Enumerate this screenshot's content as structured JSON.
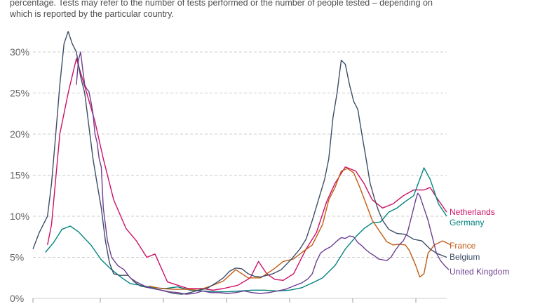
{
  "note": {
    "line1": "percentage. Tests may refer to the number of tests performed or the number of people tested – depending on",
    "line2": "which is reported by the particular country."
  },
  "chart_data": {
    "type": "line",
    "title": "",
    "xlabel": "",
    "ylabel": "",
    "ylim": [
      0,
      30
    ],
    "xlim": [
      0,
      100
    ],
    "y_ticks": [
      "0%",
      "5%",
      "10%",
      "15%",
      "20%",
      "25%",
      "30%"
    ],
    "y_tick_values": [
      0,
      5,
      10,
      15,
      20,
      25,
      30
    ],
    "grid": true,
    "series": [
      {
        "name": "Netherlands",
        "color": "#cc1166",
        "points": [
          [
            3.5,
            6.5
          ],
          [
            4.5,
            9
          ],
          [
            6.5,
            20
          ],
          [
            8.5,
            25
          ],
          [
            10.5,
            29.2
          ],
          [
            13,
            25
          ],
          [
            15,
            21.5
          ],
          [
            17,
            17
          ],
          [
            19.5,
            12
          ],
          [
            22.5,
            8.5
          ],
          [
            25,
            7
          ],
          [
            27.5,
            5
          ],
          [
            29.5,
            5.4
          ],
          [
            32.5,
            2
          ],
          [
            35,
            1.6
          ],
          [
            37.5,
            1.2
          ],
          [
            41,
            1.2
          ],
          [
            43.5,
            1
          ],
          [
            46,
            1.2
          ],
          [
            49.5,
            1.6
          ],
          [
            52.5,
            2.5
          ],
          [
            54.5,
            4.5
          ],
          [
            56.5,
            3
          ],
          [
            58.5,
            2.3
          ],
          [
            60.5,
            2.2
          ],
          [
            63,
            3
          ],
          [
            66,
            6
          ],
          [
            68.5,
            8
          ],
          [
            71,
            11.8
          ],
          [
            73,
            14
          ],
          [
            75.5,
            16
          ],
          [
            78,
            15.5
          ],
          [
            80,
            14
          ],
          [
            82,
            12
          ],
          [
            84.5,
            11
          ],
          [
            87,
            11.5
          ],
          [
            89.5,
            12.5
          ],
          [
            92,
            13.2
          ],
          [
            94.5,
            13.2
          ],
          [
            96,
            13.5
          ],
          [
            97.5,
            12.3
          ],
          [
            100,
            10.5
          ]
        ]
      },
      {
        "name": "Germany",
        "color": "#00847e",
        "points": [
          [
            3,
            5.6
          ],
          [
            5,
            6.8
          ],
          [
            7,
            8.4
          ],
          [
            9,
            8.8
          ],
          [
            11,
            8.1
          ],
          [
            14,
            6.5
          ],
          [
            16.5,
            4.7
          ],
          [
            19,
            3.5
          ],
          [
            21.5,
            2.5
          ],
          [
            23.5,
            1.8
          ],
          [
            26,
            1.6
          ],
          [
            29,
            1.3
          ],
          [
            32,
            1.2
          ],
          [
            35,
            1.4
          ],
          [
            38,
            1
          ],
          [
            41,
            0.9
          ],
          [
            44,
            0.8
          ],
          [
            47,
            0.8
          ],
          [
            50,
            0.9
          ],
          [
            53,
            1
          ],
          [
            56,
            1
          ],
          [
            59,
            0.9
          ],
          [
            62,
            1
          ],
          [
            65,
            1.3
          ],
          [
            68,
            2
          ],
          [
            70,
            2.5
          ],
          [
            73,
            4
          ],
          [
            75.5,
            6
          ],
          [
            78,
            7.5
          ],
          [
            80,
            8.5
          ],
          [
            82,
            9.2
          ],
          [
            84,
            9.3
          ],
          [
            86,
            10.5
          ],
          [
            88,
            11
          ],
          [
            90,
            11.8
          ],
          [
            92,
            12.5
          ],
          [
            93.5,
            14.5
          ],
          [
            94.5,
            15.9
          ],
          [
            96,
            14.5
          ],
          [
            98,
            11.5
          ],
          [
            100,
            10
          ]
        ]
      },
      {
        "name": "France",
        "color": "#c15b13",
        "points": [
          [
            28,
            1.5
          ],
          [
            31,
            1.2
          ],
          [
            34,
            1.1
          ],
          [
            37,
            1.1
          ],
          [
            40,
            1
          ],
          [
            43,
            1.5
          ],
          [
            46,
            2.1
          ],
          [
            49,
            3.5
          ],
          [
            52,
            2.5
          ],
          [
            55,
            2.5
          ],
          [
            58,
            3.5
          ],
          [
            60.5,
            4.5
          ],
          [
            63,
            4.8
          ],
          [
            65,
            5.6
          ],
          [
            67.5,
            6.5
          ],
          [
            70,
            9
          ],
          [
            71.5,
            12
          ],
          [
            73,
            13.5
          ],
          [
            74.5,
            15.5
          ],
          [
            76,
            15.8
          ],
          [
            77.5,
            15.3
          ],
          [
            79,
            13.5
          ],
          [
            80.5,
            11.5
          ],
          [
            82,
            9.5
          ],
          [
            84,
            8
          ],
          [
            85.5,
            6.9
          ],
          [
            87,
            6.5
          ],
          [
            88.5,
            6.6
          ],
          [
            90,
            6.5
          ],
          [
            91,
            5.8
          ],
          [
            92.5,
            4
          ],
          [
            93.5,
            2.6
          ],
          [
            94.5,
            3
          ],
          [
            95.5,
            5.5
          ],
          [
            97,
            6.5
          ],
          [
            99,
            7
          ],
          [
            101,
            6.5
          ]
        ]
      },
      {
        "name": "Belgium",
        "color": "#3c4e66",
        "points": [
          [
            0,
            6
          ],
          [
            1.5,
            8
          ],
          [
            2.5,
            9
          ],
          [
            3.5,
            10
          ],
          [
            4.5,
            14
          ],
          [
            5.5,
            20
          ],
          [
            6.5,
            26
          ],
          [
            7.5,
            31
          ],
          [
            8.5,
            32.5
          ],
          [
            9.5,
            31
          ],
          [
            10.5,
            30
          ],
          [
            11.5,
            27
          ],
          [
            12.5,
            25
          ],
          [
            13.5,
            21
          ],
          [
            14.5,
            17
          ],
          [
            15.5,
            14
          ],
          [
            16.5,
            11
          ],
          [
            17.5,
            7
          ],
          [
            18.5,
            4.3
          ],
          [
            19.5,
            3
          ],
          [
            21,
            2.8
          ],
          [
            23,
            2.8
          ],
          [
            24.5,
            2
          ],
          [
            26,
            1.5
          ],
          [
            28,
            1.3
          ],
          [
            31,
            1
          ],
          [
            34,
            0.6
          ],
          [
            36,
            0.5
          ],
          [
            38,
            0.7
          ],
          [
            40,
            1
          ],
          [
            42,
            1.2
          ],
          [
            44,
            1.8
          ],
          [
            46,
            2.5
          ],
          [
            47.5,
            3.3
          ],
          [
            49,
            3.7
          ],
          [
            50.5,
            3.6
          ],
          [
            52,
            3
          ],
          [
            53.5,
            2.7
          ],
          [
            55,
            2.6
          ],
          [
            56.5,
            2.8
          ],
          [
            58,
            3
          ],
          [
            60,
            3.5
          ],
          [
            62.5,
            4.8
          ],
          [
            64.5,
            6
          ],
          [
            66,
            7.2
          ],
          [
            67.5,
            9.5
          ],
          [
            69,
            12
          ],
          [
            70.5,
            14.5
          ],
          [
            71.5,
            17
          ],
          [
            72.5,
            22
          ],
          [
            73.5,
            25
          ],
          [
            74.5,
            29
          ],
          [
            75.5,
            28.5
          ],
          [
            76.5,
            26
          ],
          [
            77.5,
            24
          ],
          [
            78.5,
            23
          ],
          [
            79.5,
            20
          ],
          [
            80.5,
            17
          ],
          [
            81.5,
            14
          ],
          [
            82.5,
            12.2
          ],
          [
            83.5,
            10.7
          ],
          [
            84.5,
            9.5
          ],
          [
            86,
            8.4
          ],
          [
            88,
            7.9
          ],
          [
            90,
            7.8
          ],
          [
            92,
            7.2
          ],
          [
            94,
            7
          ],
          [
            96,
            6
          ],
          [
            97.5,
            5.5
          ],
          [
            100,
            5
          ]
        ]
      },
      {
        "name": "United Kingdom",
        "color": "#6d3e91",
        "points": [
          [
            10.5,
            26
          ],
          [
            11,
            29
          ],
          [
            11.5,
            30
          ],
          [
            12,
            28
          ],
          [
            12.5,
            26
          ],
          [
            13,
            25.5
          ],
          [
            13.5,
            25.2
          ],
          [
            14,
            24
          ],
          [
            14.5,
            22.5
          ],
          [
            15,
            20
          ],
          [
            15.5,
            19
          ],
          [
            16,
            17
          ],
          [
            16.5,
            16
          ],
          [
            17,
            11
          ],
          [
            18,
            7
          ],
          [
            19,
            5
          ],
          [
            20.5,
            4
          ],
          [
            22,
            3.5
          ],
          [
            23.5,
            2.5
          ],
          [
            25,
            2
          ],
          [
            27,
            1.5
          ],
          [
            29,
            1.2
          ],
          [
            31,
            1
          ],
          [
            33,
            0.8
          ],
          [
            35,
            0.7
          ],
          [
            37,
            0.5
          ],
          [
            39,
            0.6
          ],
          [
            41,
            0.9
          ],
          [
            43,
            0.7
          ],
          [
            45,
            0.7
          ],
          [
            47,
            0.6
          ],
          [
            49,
            0.7
          ],
          [
            51,
            0.9
          ],
          [
            53,
            0.7
          ],
          [
            55,
            0.6
          ],
          [
            57,
            0.7
          ],
          [
            59,
            0.9
          ],
          [
            61,
            1.1
          ],
          [
            63,
            1.5
          ],
          [
            65,
            1.9
          ],
          [
            66.5,
            2.4
          ],
          [
            67.5,
            3
          ],
          [
            68.5,
            4.5
          ],
          [
            69.5,
            5.5
          ],
          [
            70.5,
            5.9
          ],
          [
            72,
            6.3
          ],
          [
            73.5,
            7
          ],
          [
            74.5,
            7.4
          ],
          [
            75.5,
            7.3
          ],
          [
            76.5,
            7.6
          ],
          [
            77.5,
            7.5
          ],
          [
            78.5,
            6.8
          ],
          [
            79.5,
            6.4
          ],
          [
            80.5,
            5.9
          ],
          [
            81.5,
            5.5
          ],
          [
            82.5,
            5.2
          ],
          [
            83.5,
            4.8
          ],
          [
            84.5,
            4.7
          ],
          [
            85.5,
            4.6
          ],
          [
            86.5,
            5
          ],
          [
            87.5,
            5.8
          ],
          [
            88.5,
            6.5
          ],
          [
            89.5,
            7
          ],
          [
            90.5,
            8
          ],
          [
            91.5,
            10
          ],
          [
            92.5,
            12
          ],
          [
            93,
            12.8
          ],
          [
            93.5,
            12.5
          ],
          [
            94.5,
            11
          ],
          [
            95.5,
            9.5
          ],
          [
            96.5,
            7.5
          ],
          [
            97.5,
            5.5
          ],
          [
            98.5,
            4.6
          ],
          [
            99.5,
            4
          ],
          [
            100.5,
            3.5
          ]
        ]
      }
    ]
  }
}
